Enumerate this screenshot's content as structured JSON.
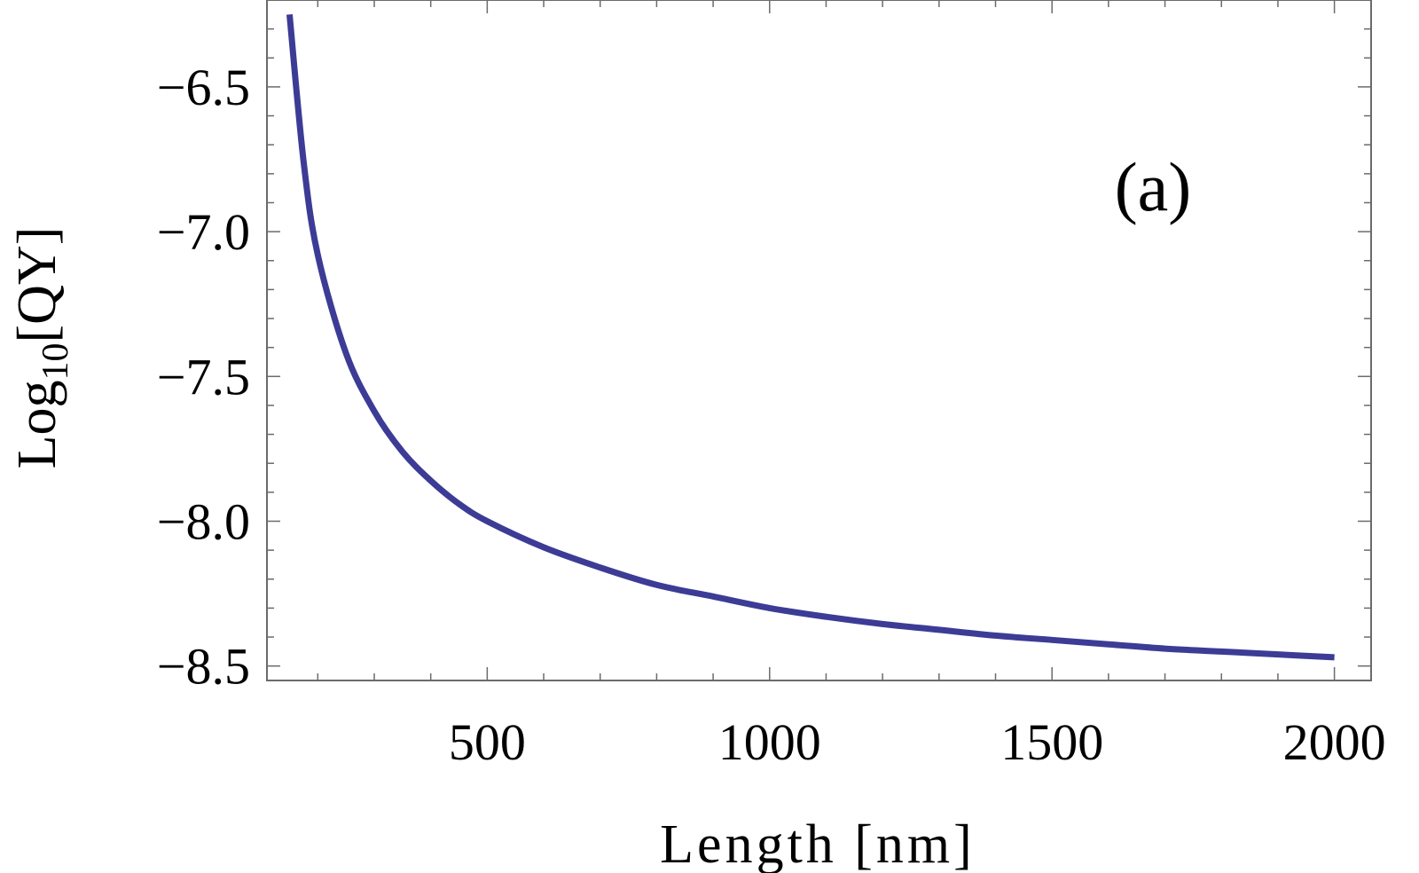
{
  "chart_data": {
    "type": "line",
    "title": "",
    "xlabel": "Length [nm]",
    "ylabel": {
      "prefix": "Log",
      "subscript": "10",
      "suffix": "[QY]"
    },
    "annotation": "(a)",
    "xlim": [
      110,
      2065
    ],
    "ylim": [
      -8.55,
      -6.2
    ],
    "x_ticks": [
      {
        "value": 500,
        "label": "500"
      },
      {
        "value": 1000,
        "label": "1000"
      },
      {
        "value": 1500,
        "label": "1500"
      },
      {
        "value": 2000,
        "label": "2000"
      }
    ],
    "y_ticks": [
      {
        "value": -6.5,
        "label": "−6.5"
      },
      {
        "value": -7.0,
        "label": "−7.0"
      },
      {
        "value": -7.5,
        "label": "−7.5"
      },
      {
        "value": -8.0,
        "label": "−8.0"
      },
      {
        "value": -8.5,
        "label": "−8.5"
      }
    ],
    "x_minor_step": 100,
    "y_minor_step": 0.1,
    "grid": false,
    "series": [
      {
        "color": "#3c3c96",
        "x": [
          150,
          175,
          200,
          250,
          300,
          350,
          400,
          450,
          500,
          600,
          700,
          800,
          900,
          1000,
          1100,
          1200,
          1300,
          1400,
          1500,
          1600,
          1700,
          1800,
          1900,
          2000
        ],
        "y": [
          -6.25,
          -6.76,
          -7.08,
          -7.42,
          -7.62,
          -7.76,
          -7.86,
          -7.94,
          -8.0,
          -8.09,
          -8.16,
          -8.22,
          -8.26,
          -8.3,
          -8.33,
          -8.355,
          -8.375,
          -8.395,
          -8.41,
          -8.425,
          -8.44,
          -8.45,
          -8.46,
          -8.47
        ]
      }
    ]
  }
}
